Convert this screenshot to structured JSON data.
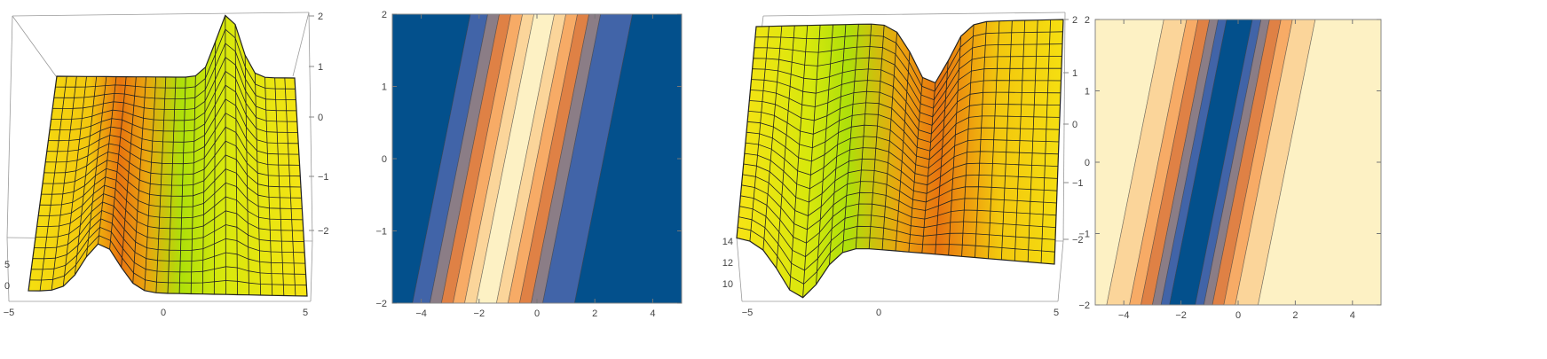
{
  "chart_data": [
    {
      "type": "surface",
      "xticks": [
        "-5",
        "0",
        "5"
      ],
      "yticks": [
        "0",
        "5"
      ],
      "zticks": [
        "2",
        "1",
        "0",
        "-1",
        "-2"
      ],
      "colors": {
        "base": "#f5df10",
        "ridge": "#e8750f",
        "valley": "#aee00a",
        "mesh": "#222222"
      }
    },
    {
      "type": "contour",
      "xrange": [
        -5,
        5
      ],
      "yrange": [
        -2,
        2
      ],
      "xticks": [
        -4,
        -2,
        0,
        2,
        4
      ],
      "yticks": [
        -2,
        -1,
        0,
        1,
        2
      ],
      "band_slope": 0.5,
      "bands": [
        {
          "from": -99,
          "to": -3.3,
          "color": "#03508c"
        },
        {
          "from": -3.3,
          "to": -2.7,
          "color": "#4164a8"
        },
        {
          "from": -2.7,
          "to": -2.3,
          "color": "#8b7d86"
        },
        {
          "from": -2.3,
          "to": -1.9,
          "color": "#df8145"
        },
        {
          "from": -1.9,
          "to": -1.5,
          "color": "#f7ab66"
        },
        {
          "from": -1.5,
          "to": -1.1,
          "color": "#fbd59a"
        },
        {
          "from": -1.1,
          "to": -0.4,
          "color": "#fdf1c4"
        },
        {
          "from": -0.4,
          "to": 0.0,
          "color": "#fbd59a"
        },
        {
          "from": 0.0,
          "to": 0.4,
          "color": "#f7ab66"
        },
        {
          "from": 0.4,
          "to": 0.8,
          "color": "#df8145"
        },
        {
          "from": 0.8,
          "to": 1.2,
          "color": "#8b7d86"
        },
        {
          "from": 1.2,
          "to": 2.3,
          "color": "#4164a8"
        },
        {
          "from": 2.3,
          "to": 99,
          "color": "#03508c"
        }
      ]
    },
    {
      "type": "surface",
      "xticks": [
        "-5",
        "0",
        "5"
      ],
      "yticks": [
        "10",
        "12",
        "14"
      ],
      "zticks": [
        "2",
        "1",
        "0",
        "-1",
        "-2"
      ],
      "colors": {
        "base": "#f5df10",
        "ridge": "#e8750f",
        "valley": "#aee00a",
        "mesh": "#222222"
      }
    },
    {
      "type": "contour",
      "xrange": [
        -5,
        5
      ],
      "yrange": [
        -2,
        2
      ],
      "xticks": [
        -4,
        -2,
        0,
        2,
        4
      ],
      "yticks": [
        -2,
        -1,
        0,
        1,
        2
      ],
      "band_slope": 0.5,
      "bands": [
        {
          "from": -99,
          "to": -3.6,
          "color": "#fdf1c4"
        },
        {
          "from": -3.6,
          "to": -2.8,
          "color": "#fbd59a"
        },
        {
          "from": -2.8,
          "to": -2.4,
          "color": "#f7ab66"
        },
        {
          "from": -2.4,
          "to": -2.0,
          "color": "#df8145"
        },
        {
          "from": -2.0,
          "to": -1.7,
          "color": "#8b7d86"
        },
        {
          "from": -1.7,
          "to": -1.4,
          "color": "#4164a8"
        },
        {
          "from": -1.4,
          "to": -0.5,
          "color": "#03508c"
        },
        {
          "from": -0.5,
          "to": -0.2,
          "color": "#4164a8"
        },
        {
          "from": -0.2,
          "to": 0.1,
          "color": "#8b7d86"
        },
        {
          "from": 0.1,
          "to": 0.5,
          "color": "#df8145"
        },
        {
          "from": 0.5,
          "to": 0.9,
          "color": "#f7ab66"
        },
        {
          "from": 0.9,
          "to": 1.7,
          "color": "#fbd59a"
        },
        {
          "from": 1.7,
          "to": 99,
          "color": "#fdf1c4"
        }
      ]
    }
  ]
}
